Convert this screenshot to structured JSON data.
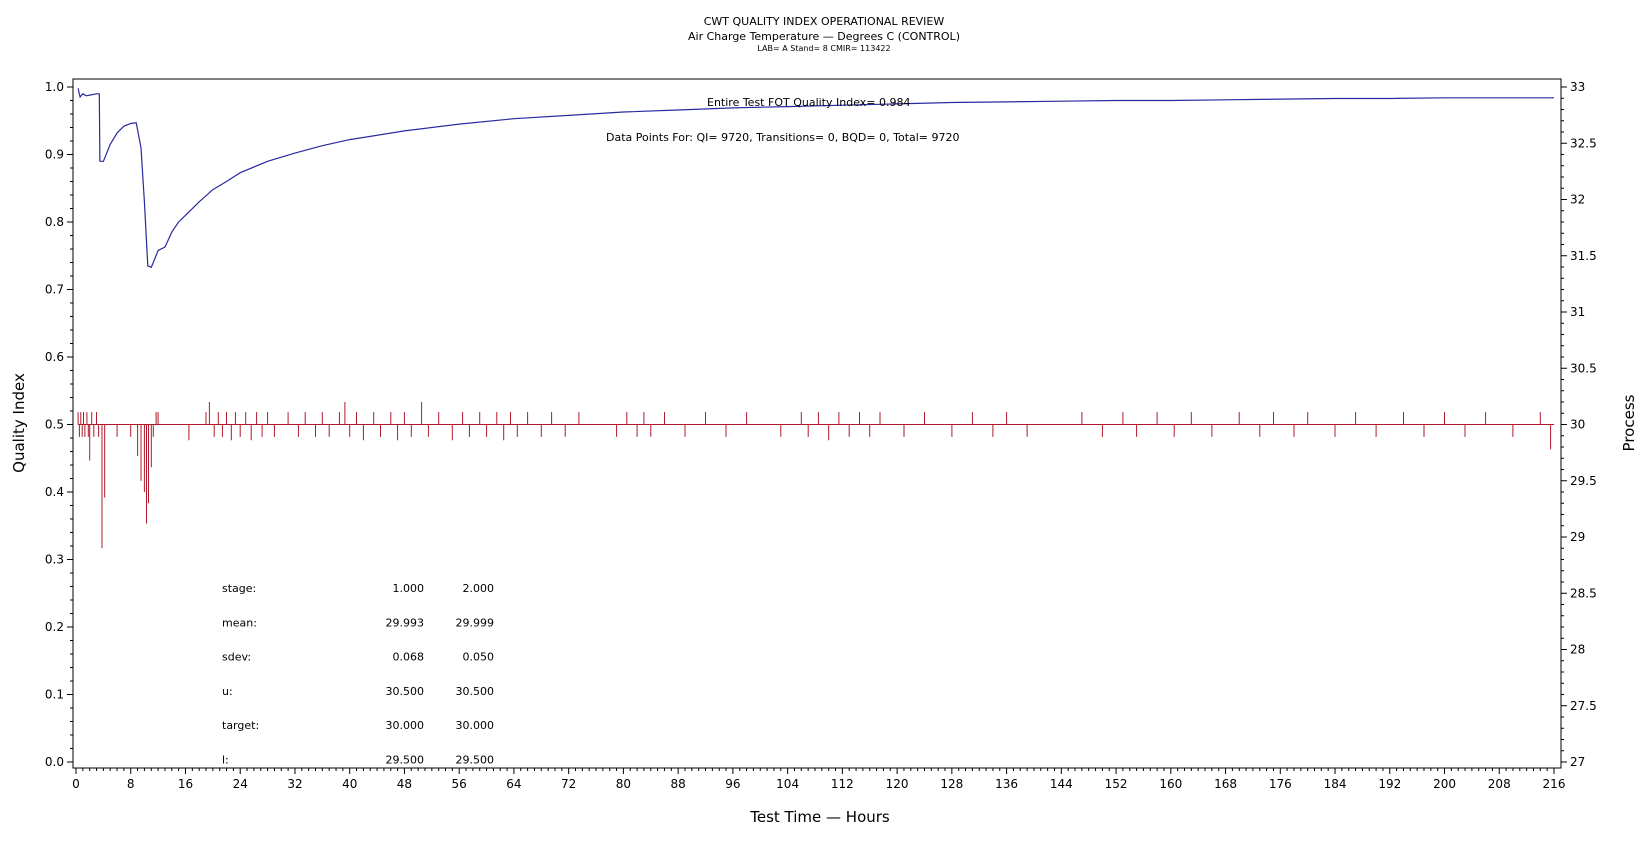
{
  "chart_data": {
    "type": "line",
    "title": "CWT QUALITY INDEX OPERATIONAL REVIEW",
    "subtitle": "Air Charge Temperature — Degrees C (CONTROL)",
    "subtitle2": "LAB= A Stand= 8 CMIR= 113422",
    "xlabel": "Test Time — Hours",
    "ylabel_left": "Quality Index",
    "ylabel_right": "Process",
    "xlim": [
      0,
      216
    ],
    "ylim_left": [
      0.0,
      1.0
    ],
    "ylim_right": [
      27,
      33
    ],
    "x_ticks": [
      "0",
      "8",
      "16",
      "24",
      "32",
      "40",
      "48",
      "56",
      "64",
      "72",
      "80",
      "88",
      "96",
      "104",
      "112",
      "120",
      "128",
      "136",
      "144",
      "152",
      "160",
      "168",
      "176",
      "184",
      "192",
      "200",
      "208",
      "216"
    ],
    "y_left_ticks": [
      "0.0",
      "0.1",
      "0.2",
      "0.3",
      "0.4",
      "0.5",
      "0.6",
      "0.7",
      "0.8",
      "0.9",
      "1.0"
    ],
    "y_right_ticks": [
      "27",
      "27.5",
      "28",
      "28.5",
      "29",
      "29.5",
      "30",
      "30.5",
      "31",
      "31.5",
      "32",
      "32.5",
      "33"
    ],
    "annotations": {
      "quality_index": "Entire Test FOT Quality Index=  0.984",
      "data_points": "Data Points For: QI=  9720, Transitions=     0, BQD=     0, Total=  9720"
    },
    "stats_table": {
      "rows": [
        {
          "label": "stage:",
          "v1": "1.000",
          "v2": "2.000"
        },
        {
          "label": "mean:",
          "v1": "29.993",
          "v2": "29.999"
        },
        {
          "label": "sdev:",
          "v1": "0.068",
          "v2": "0.050"
        },
        {
          "label": "u:",
          "v1": "30.500",
          "v2": "30.500"
        },
        {
          "label": "target:",
          "v1": "30.000",
          "v2": "30.000"
        },
        {
          "label": "l:",
          "v1": "29.500",
          "v2": "29.500"
        }
      ]
    },
    "colors": {
      "quality_index": "#2a2aa0",
      "process": "#b0182a"
    },
    "series": [
      {
        "axis": "left",
        "x": [
          0.3,
          0.6,
          1,
          1.5,
          2,
          3,
          3.4,
          3.5,
          4,
          5,
          6,
          7,
          8,
          8.8,
          9.5,
          10,
          10.5,
          11,
          11.5,
          12,
          13,
          14,
          15,
          16,
          18,
          20,
          22,
          24,
          28,
          32,
          36,
          40,
          48,
          56,
          64,
          72,
          80,
          88,
          96,
          104,
          112,
          120,
          128,
          136,
          144,
          152,
          160,
          168,
          176,
          184,
          192,
          200,
          208,
          216
        ],
        "y": [
          0.998,
          0.985,
          0.99,
          0.987,
          0.988,
          0.99,
          0.99,
          0.89,
          0.89,
          0.915,
          0.932,
          0.942,
          0.946,
          0.947,
          0.91,
          0.83,
          0.735,
          0.733,
          0.745,
          0.758,
          0.763,
          0.785,
          0.8,
          0.81,
          0.83,
          0.848,
          0.86,
          0.873,
          0.89,
          0.902,
          0.913,
          0.922,
          0.935,
          0.945,
          0.953,
          0.958,
          0.963,
          0.966,
          0.969,
          0.971,
          0.973,
          0.975,
          0.977,
          0.978,
          0.979,
          0.98,
          0.98,
          0.981,
          0.982,
          0.983,
          0.983,
          0.984,
          0.984,
          0.984
        ]
      },
      {
        "axis": "right",
        "baseline": 30.0,
        "x": [
          0.3,
          0.5,
          0.7,
          0.9,
          1.1,
          1.3,
          1.6,
          1.8,
          2.0,
          2.3,
          2.6,
          3.0,
          3.3,
          3.8,
          4.2,
          6.0,
          8.0,
          9.0,
          9.5,
          10.0,
          10.3,
          10.6,
          11.0,
          11.3,
          11.7,
          12.0,
          16.5,
          19.0,
          19.5,
          20.2,
          20.8,
          21.4,
          22.0,
          22.7,
          23.3,
          24.0,
          24.8,
          25.6,
          26.4,
          27.2,
          28.0,
          29.0,
          31.0,
          32.5,
          33.5,
          35.0,
          36.0,
          37.0,
          38.5,
          39.3,
          40.0,
          41.0,
          42.0,
          43.5,
          44.5,
          46.0,
          47.0,
          48.0,
          49.0,
          50.5,
          51.5,
          53.0,
          55.0,
          56.5,
          57.5,
          59.0,
          60.0,
          61.5,
          62.5,
          63.5,
          64.5,
          66.0,
          68.0,
          69.5,
          71.5,
          73.5,
          79.0,
          80.5,
          82.0,
          83.0,
          84.0,
          86.0,
          89.0,
          92.0,
          95.0,
          98.0,
          103.0,
          106.0,
          107.0,
          108.5,
          110.0,
          111.5,
          113.0,
          114.5,
          116.0,
          117.5,
          121.0,
          124.0,
          128.0,
          131.0,
          134.0,
          136.0,
          139.0,
          147.0,
          150.0,
          153.0,
          155.0,
          158.0,
          160.5,
          163.0,
          166.0,
          170.0,
          173.0,
          175.0,
          178.0,
          180.0,
          184.0,
          187.0,
          190.0,
          194.0,
          197.0,
          200.0,
          203.0,
          206.0,
          210.0,
          214.0,
          215.5
        ],
        "y": [
          30.11,
          29.89,
          30.11,
          29.89,
          30.11,
          29.89,
          30.11,
          29.89,
          29.68,
          30.11,
          29.89,
          30.11,
          29.89,
          28.9,
          29.35,
          29.89,
          29.89,
          29.72,
          29.5,
          29.4,
          29.12,
          29.3,
          29.62,
          29.89,
          30.11,
          30.11,
          29.86,
          30.11,
          30.2,
          29.89,
          30.11,
          29.89,
          30.11,
          29.86,
          30.11,
          29.89,
          30.11,
          29.86,
          30.11,
          29.89,
          30.11,
          29.89,
          30.11,
          29.89,
          30.11,
          29.89,
          30.11,
          29.89,
          30.11,
          30.2,
          29.89,
          30.11,
          29.86,
          30.11,
          29.89,
          30.11,
          29.86,
          30.11,
          29.89,
          30.2,
          29.89,
          30.11,
          29.86,
          30.11,
          29.89,
          30.11,
          29.89,
          30.11,
          29.86,
          30.11,
          29.89,
          30.11,
          29.89,
          30.11,
          29.89,
          30.11,
          29.89,
          30.11,
          29.89,
          30.11,
          29.89,
          30.11,
          29.89,
          30.11,
          29.89,
          30.11,
          29.89,
          30.11,
          29.89,
          30.11,
          29.86,
          30.11,
          29.89,
          30.11,
          29.89,
          30.11,
          29.89,
          30.11,
          29.89,
          30.11,
          29.89,
          30.11,
          29.89,
          30.11,
          29.89,
          30.11,
          29.89,
          30.11,
          29.89,
          30.11,
          29.89,
          30.11,
          29.89,
          30.11,
          29.89,
          30.11,
          29.89,
          30.11,
          29.89,
          30.11,
          29.89,
          30.11,
          29.89,
          30.11,
          29.89,
          30.11,
          29.78
        ]
      }
    ]
  }
}
